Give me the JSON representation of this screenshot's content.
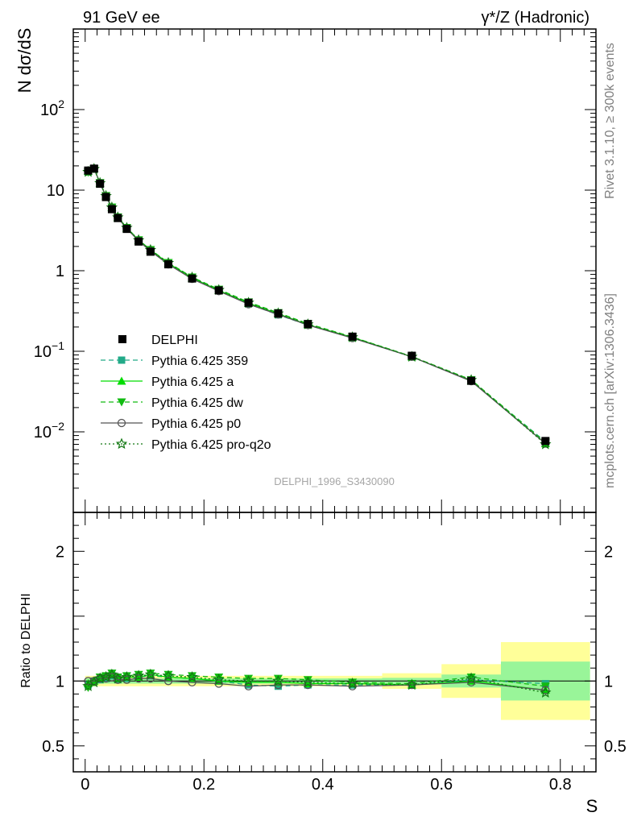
{
  "chart_data": {
    "type": "line",
    "title_left": "91 GeV ee",
    "title_right": "γ*/Z (Hadronic)",
    "ylabel": "N dσ/dS",
    "xlabel": "S",
    "ratio_ylabel": "Ratio to DELPHI",
    "side_label_top": "Rivet 3.1.10, ≥ 300k events",
    "side_label_bottom": "mcplots.cern.ch [arXiv:1306.3436]",
    "analysis_label": "DELPHI_1996_S3430090",
    "y_scale": "log",
    "main_ylim": [
      0.001,
      1000
    ],
    "ratio_ylim": [
      0.3,
      2.3
    ],
    "xlim": [
      -0.02,
      0.86
    ],
    "x_ticks": [
      "0",
      "0.2",
      "0.4",
      "0.6",
      "0.8"
    ],
    "x_tick_values": [
      0,
      0.2,
      0.4,
      0.6,
      0.8
    ],
    "y_ticks": [
      {
        "value": 100,
        "mant": "10",
        "exp": "2"
      },
      {
        "value": 10,
        "mant": "10",
        "exp": ""
      },
      {
        "value": 1,
        "mant": "1",
        "exp": ""
      },
      {
        "value": 0.1,
        "mant": "10",
        "exp": "−1"
      },
      {
        "value": 0.01,
        "mant": "10",
        "exp": "−2"
      }
    ],
    "ratio_ticks": [
      {
        "value": 2,
        "label": "2"
      },
      {
        "value": 1,
        "label": "1"
      },
      {
        "value": 0.5,
        "label": "0.5"
      }
    ],
    "x": [
      0.005,
      0.015,
      0.025,
      0.035,
      0.045,
      0.055,
      0.07,
      0.09,
      0.11,
      0.14,
      0.18,
      0.225,
      0.275,
      0.325,
      0.375,
      0.45,
      0.55,
      0.65,
      0.775
    ],
    "data_series": {
      "name": "DELPHI",
      "values": [
        17.5,
        18.5,
        12.0,
        8.2,
        5.8,
        4.5,
        3.3,
        2.3,
        1.72,
        1.2,
        0.8,
        0.57,
        0.4,
        0.295,
        0.218,
        0.152,
        0.088,
        0.043,
        0.0077
      ]
    },
    "ratio_band_bins": [
      {
        "x0": 0.0,
        "x1": 0.5,
        "inner": 0.02,
        "outer": 0.04
      },
      {
        "x0": 0.5,
        "x1": 0.6,
        "inner": 0.025,
        "outer": 0.06
      },
      {
        "x0": 0.6,
        "x1": 0.7,
        "inner": 0.05,
        "outer": 0.13
      },
      {
        "x0": 0.7,
        "x1": 0.85,
        "inner": 0.15,
        "outer": 0.3
      }
    ],
    "series": [
      {
        "name": "Pythia 6.425 359",
        "color": "#22aa88",
        "dash": "6,4",
        "marker": "square",
        "ratio": [
          0.97,
          1.0,
          1.01,
          1.02,
          1.04,
          1.01,
          1.02,
          1.03,
          1.04,
          1.03,
          1.02,
          1.0,
          0.97,
          0.96,
          0.97,
          0.97,
          0.97,
          1.01,
          0.98
        ]
      },
      {
        "name": "Pythia 6.425 a",
        "color": "#00dd00",
        "dash": "",
        "marker": "triangle-up",
        "ratio": [
          0.98,
          1.0,
          1.02,
          1.04,
          1.05,
          1.02,
          1.03,
          1.03,
          1.05,
          1.03,
          1.02,
          1.0,
          0.99,
          0.99,
          0.98,
          0.98,
          0.97,
          1.0,
          0.93
        ]
      },
      {
        "name": "Pythia 6.425 dw",
        "color": "#11bb11",
        "dash": "6,4",
        "marker": "triangle-down",
        "ratio": [
          0.95,
          0.99,
          1.03,
          1.04,
          1.06,
          1.03,
          1.04,
          1.05,
          1.06,
          1.05,
          1.04,
          1.03,
          1.02,
          1.02,
          1.01,
          0.99,
          0.98,
          1.03,
          0.96
        ]
      },
      {
        "name": "Pythia 6.425 p0",
        "color": "#555555",
        "dash": "",
        "marker": "circle",
        "ratio": [
          1.0,
          1.0,
          1.02,
          1.02,
          1.03,
          1.01,
          1.01,
          1.02,
          1.02,
          1.0,
          0.99,
          0.98,
          0.96,
          0.97,
          0.97,
          0.96,
          0.97,
          0.99,
          0.93
        ]
      },
      {
        "name": "Pythia 6.425 pro-q2o",
        "color": "#117711",
        "dash": "2,3",
        "marker": "star",
        "ratio": [
          0.96,
          0.99,
          1.02,
          1.03,
          1.05,
          1.02,
          1.03,
          1.04,
          1.05,
          1.04,
          1.03,
          1.01,
          1.0,
          1.0,
          0.99,
          0.98,
          0.97,
          1.02,
          0.91
        ]
      }
    ],
    "legend_placement": "bottom-left",
    "grid": false
  }
}
